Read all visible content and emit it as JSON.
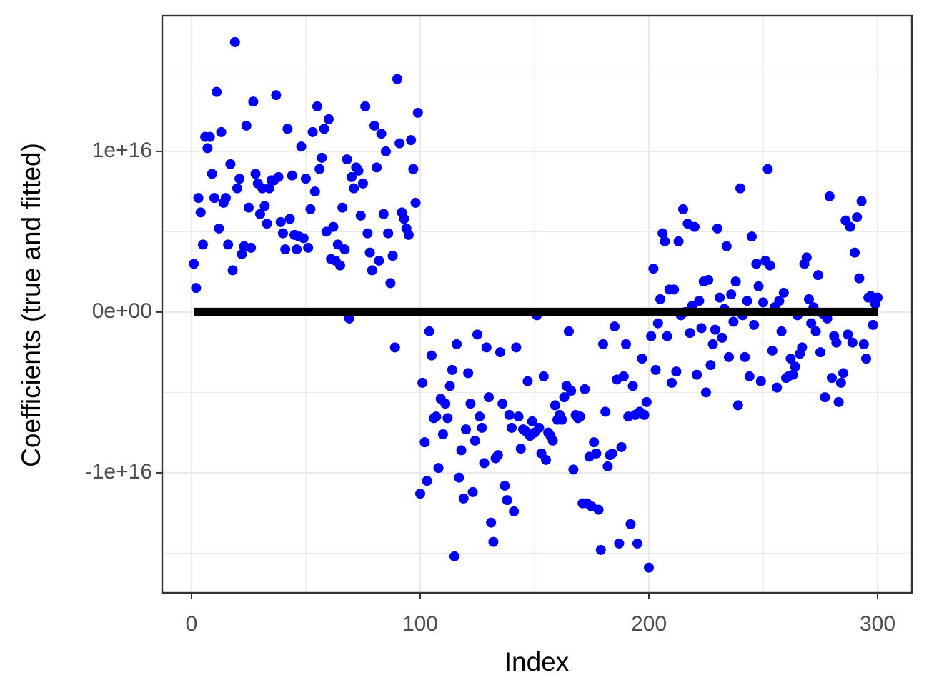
{
  "chart_data": {
    "type": "scatter",
    "xlabel": "Index",
    "ylabel": "Coefficients (true and fitted)",
    "xlim": [
      -12.8,
      315
    ],
    "ylim": [
      -1.747e+16,
      1.844e+16
    ],
    "xticks": [
      0,
      100,
      200,
      300
    ],
    "yticks": [
      {
        "value": -1e+16,
        "label": "-1e+16"
      },
      {
        "value": 0,
        "label": "0e+00"
      },
      {
        "value": 1e+16,
        "label": "1e+16"
      }
    ],
    "minor_xticks": [
      50,
      150,
      250
    ],
    "minor_yticks": [
      -1.5e+16,
      -5000000000000000.0,
      5000000000000000.0,
      1.5e+16
    ],
    "grid": true,
    "series": [
      {
        "color": "#0000ff",
        "style": "points",
        "x": [
          1,
          2,
          3,
          4,
          5,
          6,
          7,
          8,
          9,
          10,
          11,
          12,
          13,
          14,
          15,
          16,
          17,
          18,
          19,
          20,
          21,
          22,
          23,
          24,
          25,
          26,
          27,
          28,
          29,
          30,
          31,
          32,
          33,
          34,
          35,
          36,
          37,
          38,
          39,
          40,
          41,
          42,
          43,
          44,
          45,
          46,
          47,
          48,
          49,
          50,
          51,
          52,
          53,
          54,
          55,
          56,
          57,
          58,
          59,
          60,
          61,
          62,
          63,
          64,
          65,
          66,
          67,
          68,
          69,
          70,
          71,
          72,
          73,
          74,
          75,
          76,
          77,
          78,
          79,
          80,
          81,
          82,
          83,
          84,
          85,
          86,
          87,
          88,
          89,
          90,
          91,
          92,
          93,
          94,
          95,
          96,
          97,
          98,
          99,
          100,
          101,
          102,
          103,
          104,
          105,
          106,
          107,
          108,
          109,
          110,
          111,
          112,
          113,
          114,
          115,
          116,
          117,
          118,
          119,
          120,
          121,
          122,
          123,
          124,
          125,
          126,
          127,
          128,
          129,
          130,
          131,
          132,
          133,
          134,
          135,
          136,
          137,
          138,
          139,
          140,
          141,
          142,
          143,
          144,
          145,
          146,
          147,
          148,
          149,
          150,
          151,
          152,
          153,
          154,
          155,
          156,
          157,
          158,
          159,
          160,
          161,
          162,
          163,
          164,
          165,
          166,
          167,
          168,
          169,
          170,
          171,
          172,
          173,
          174,
          175,
          176,
          177,
          178,
          179,
          180,
          181,
          182,
          183,
          184,
          185,
          186,
          187,
          188,
          189,
          190,
          191,
          192,
          193,
          194,
          195,
          196,
          197,
          198,
          199,
          200,
          201,
          202,
          203,
          204,
          205,
          206,
          207,
          208,
          209,
          210,
          211,
          212,
          213,
          214,
          215,
          216,
          217,
          218,
          219,
          220,
          221,
          222,
          223,
          224,
          225,
          226,
          227,
          228,
          229,
          230,
          231,
          232,
          233,
          234,
          235,
          236,
          237,
          238,
          239,
          240,
          241,
          242,
          243,
          244,
          245,
          246,
          247,
          248,
          249,
          250,
          251,
          252,
          253,
          254,
          255,
          256,
          257,
          258,
          259,
          260,
          261,
          262,
          263,
          264,
          265,
          266,
          267,
          268,
          269,
          270,
          271,
          272,
          273,
          274,
          275,
          276,
          277,
          278,
          279,
          280,
          281,
          282,
          283,
          284,
          285,
          286,
          287,
          288,
          289,
          290,
          291,
          292,
          293,
          294,
          295,
          296,
          297,
          298,
          299,
          300
        ],
        "values": [
          3000000000000000.0,
          1500000000000000.0,
          7100000000000000.0,
          6200000000000000.0,
          4200000000000000.0,
          1.09e+16,
          1.02e+16,
          1.09e+16,
          8600000000000000.0,
          7100000000000000.0,
          1.37e+16,
          5200000000000000.0,
          1.12e+16,
          6800000000000000.0,
          7100000000000000.0,
          4200000000000000.0,
          9200000000000000.0,
          2600000000000000.0,
          1.68e+16,
          7700000000000000.0,
          8300000000000000.0,
          3600000000000000.0,
          4100000000000000.0,
          1.16e+16,
          6500000000000000.0,
          4000000000000000.0,
          1.31e+16,
          8600000000000000.0,
          8000000000000000.0,
          6100000000000000.0,
          7700000000000000.0,
          6600000000000000.0,
          5500000000000000.0,
          7700000000000000.0,
          8200000000000000.0,
          8200000000000000.0,
          1.35e+16,
          8400000000000000.0,
          5600000000000000.0,
          4900000000000000.0,
          3900000000000000.0,
          1.14e+16,
          5800000000000000.0,
          8500000000000000.0,
          4800000000000000.0,
          3900000000000000.0,
          4700000000000000.0,
          1.03e+16,
          4600000000000000.0,
          8300000000000000.0,
          4000000000000000.0,
          6400000000000000.0,
          1.12e+16,
          7500000000000000.0,
          1.28e+16,
          8900000000000000.0,
          9600000000000000.0,
          1.14e+16,
          5000000000000000.0,
          1.2e+16,
          3300000000000000.0,
          5300000000000000.0,
          3200000000000000.0,
          4200000000000000.0,
          2900000000000000.0,
          6500000000000000.0,
          3900000000000000.0,
          9500000000000000.0,
          -400000000000000.0,
          8400000000000000.0,
          7700000000000000.0,
          9000000000000000.0,
          8800000000000000.0,
          6000000000000000.0,
          8000000000000000.0,
          1.28e+16,
          4900000000000000.0,
          3700000000000000.0,
          2600000000000000.0,
          1.16e+16,
          9000000000000000.0,
          3200000000000000.0,
          1.11e+16,
          6100000000000000.0,
          1e+16,
          4900000000000000.0,
          1800000000000000.0,
          3500000000000000.0,
          -2200000000000000.0,
          1.45e+16,
          1.05e+16,
          6200000000000000.0,
          5800000000000000.0,
          5200000000000000.0,
          4800000000000000.0,
          1.07e+16,
          8900000000000000.0,
          6800000000000000.0,
          1.24e+16,
          -1.13e+16,
          -4400000000000000.0,
          -8100000000000000.0,
          -1.05e+16,
          -1200000000000000.0,
          -2700000000000000.0,
          -6600000000000000.0,
          -6500000000000000.0,
          -9700000000000000.0,
          -5400000000000000.0,
          -7600000000000000.0,
          -5700000000000000.0,
          -6600000000000000.0,
          -4600000000000000.0,
          -3600000000000000.0,
          -1.52e+16,
          -2000000000000000.0,
          -1.03e+16,
          -8600000000000000.0,
          -1.16e+16,
          -7300000000000000.0,
          -3800000000000000.0,
          -5700000000000000.0,
          -1.12e+16,
          -8000000000000000.0,
          -1400000000000000.0,
          -6500000000000000.0,
          -7200000000000000.0,
          -9400000000000000.0,
          -2200000000000000.0,
          -5300000000000000.0,
          -1.31e+16,
          -1.43e+16,
          -9100000000000000.0,
          -8900000000000000.0,
          -2500000000000000.0,
          -5700000000000000.0,
          -1.08e+16,
          -1.17e+16,
          -6400000000000000.0,
          -7200000000000000.0,
          -1.24e+16,
          -2200000000000000.0,
          -6500000000000000.0,
          -8500000000000000.0,
          -7300000000000000.0,
          -7400000000000000.0,
          -4300000000000000.0,
          -7700000000000000.0,
          -6800000000000000.0,
          -7500000000000000.0,
          -200000000000000.0,
          -7200000000000000.0,
          -8800000000000000.0,
          -4000000000000000.0,
          -9200000000000000.0,
          -7500000000000000.0,
          -7700000000000000.0,
          -8000000000000000.0,
          -5800000000000000.0,
          -6700000000000000.0,
          -6400000000000000.0,
          -6700000000000000.0,
          -5300000000000000.0,
          -4600000000000000.0,
          -1200000000000000.0,
          -4900000000000000.0,
          -9800000000000000.0,
          -6400000000000000.0,
          -6600000000000000.0,
          -6500000000000000.0,
          -1.19e+16,
          -4800000000000000.0,
          -1.19e+16,
          -9000000000000000.0,
          -1.21e+16,
          -8100000000000000.0,
          -8800000000000000.0,
          -1.23e+16,
          -1.48e+16,
          -2000000000000000.0,
          -6200000000000000.0,
          -9600000000000000.0,
          -8900000000000000.0,
          -8800000000000000.0,
          -900000000000000.0,
          -4200000000000000.0,
          -1.44e+16,
          -8400000000000000.0,
          -4000000000000000.0,
          -2000000000000000.0,
          -6500000000000000.0,
          -1.32e+16,
          -4600000000000000.0,
          -6400000000000000.0,
          -1.44e+16,
          -6200000000000000.0,
          -2900000000000000.0,
          -6400000000000000.0,
          -5600000000000000.0,
          -1.59e+16,
          -1500000000000000.0,
          2700000000000000.0,
          -3600000000000000.0,
          -700000000000000.0,
          800000000000000.0,
          4900000000000000.0,
          4400000000000000.0,
          -1500000000000000.0,
          1400000000000000.0,
          -4400000000000000.0,
          1400000000000000.0,
          -3700000000000000.0,
          4400000000000000.0,
          -200000000000000.0,
          6400000000000000.0,
          0.0,
          5500000000000000.0,
          -1300000000000000.0,
          400000000000000.0,
          5300000000000000.0,
          -3900000000000000.0,
          700000000000000.0,
          -1000000000000000.0,
          1900000000000000.0,
          -5000000000000000.0,
          2000000000000000.0,
          -3300000000000000.0,
          -2000000000000000.0,
          -1100000000000000.0,
          5200000000000000.0,
          900000000000000.0,
          -1600000000000000.0,
          200000000000000.0,
          4100000000000000.0,
          -2800000000000000.0,
          1100000000000000.0,
          -600000000000000.0,
          1900000000000000.0,
          -5800000000000000.0,
          7700000000000000.0,
          -200000000000000.0,
          -2800000000000000.0,
          700000000000000.0,
          -4000000000000000.0,
          4700000000000000.0,
          -800000000000000.0,
          3000000000000000.0,
          1600000000000000.0,
          -4300000000000000.0,
          600000000000000.0,
          3200000000000000.0,
          8900000000000000.0,
          2900000000000000.0,
          -2400000000000000.0,
          300000000000000.0,
          -4700000000000000.0,
          700000000000000.0,
          -1200000000000000.0,
          1200000000000000.0,
          -4100000000000000.0,
          -4000000000000000.0,
          -2900000000000000.0,
          -3900000000000000.0,
          -3400000000000000.0,
          -200000000000000.0,
          -2600000000000000.0,
          -2200000000000000.0,
          3000000000000000.0,
          3400000000000000.0,
          800000000000000.0,
          -700000000000000.0,
          300000000000000.0,
          -1200000000000000.0,
          2300000000000000.0,
          -2500000000000000.0,
          -100000000000000.0,
          -5300000000000000.0,
          -400000000000000.0,
          7200000000000000.0,
          -4100000000000000.0,
          -1500000000000000.0,
          -1900000000000000.0,
          -5600000000000000.0,
          -4400000000000000.0,
          -3800000000000000.0,
          5700000000000000.0,
          -1400000000000000.0,
          5300000000000000.0,
          -1900000000000000.0,
          3700000000000000.0,
          5900000000000000.0,
          2100000000000000.0,
          6900000000000000.0,
          -2000000000000000.0,
          -2900000000000000.0,
          900000000000000.0,
          1000000000000000.0,
          -800000000000000.0,
          500000000000000.0,
          900000000000000.0
        ]
      },
      {
        "color": "#000000",
        "style": "line",
        "x": [
          1,
          300
        ],
        "values": [
          0,
          0
        ]
      }
    ]
  }
}
